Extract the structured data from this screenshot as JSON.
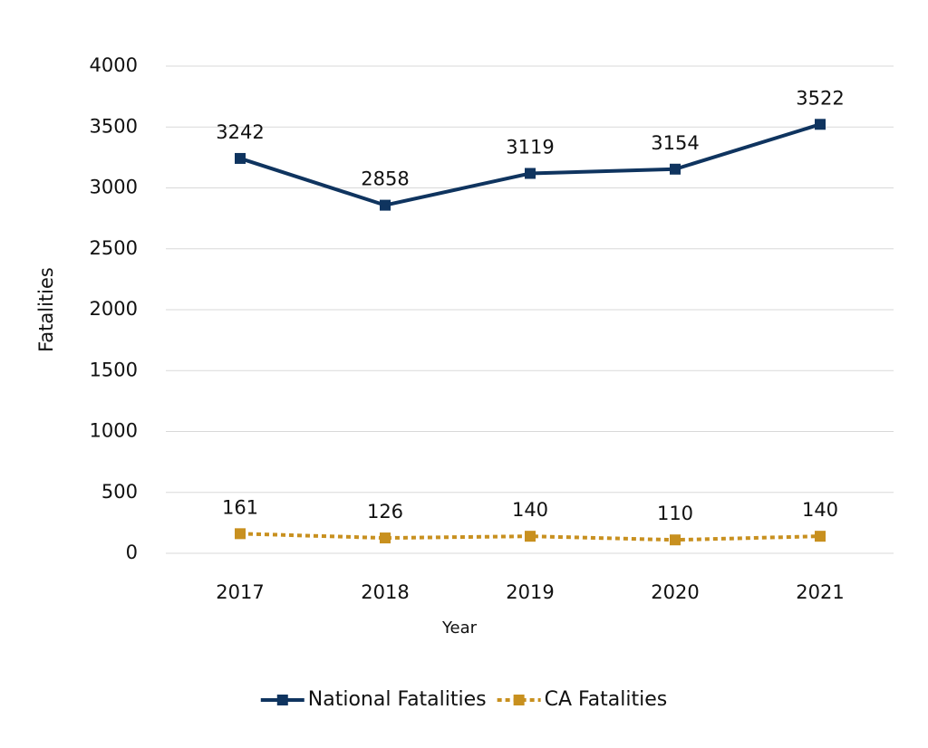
{
  "chart_data": {
    "type": "line",
    "x_label": "Year",
    "y_label": "Fatalities",
    "categories": [
      "2017",
      "2018",
      "2019",
      "2020",
      "2021"
    ],
    "series": [
      {
        "name": "National Fatalities",
        "color": "#0f345f",
        "dash": "solid",
        "values": [
          3242,
          2858,
          3119,
          3154,
          3522
        ]
      },
      {
        "name": "CA Fatalities",
        "color": "#c8901f",
        "dash": "dotted",
        "values": [
          161,
          126,
          140,
          110,
          140
        ]
      }
    ],
    "ylim": [
      0,
      4000
    ],
    "yticks": [
      0,
      500,
      1000,
      1500,
      2000,
      2500,
      3000,
      3500,
      4000
    ],
    "grid": true,
    "legend": "bottom"
  }
}
